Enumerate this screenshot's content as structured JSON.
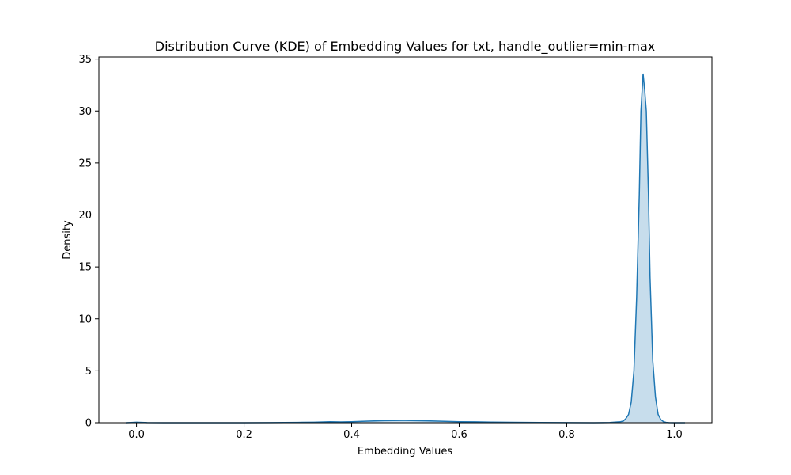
{
  "chart_data": {
    "type": "area",
    "title": "Distribution Curve (KDE) of Embedding Values for txt, handle_outlier=min-max",
    "xlabel": "Embedding Values",
    "ylabel": "Density",
    "xlim": [
      -0.07,
      1.07
    ],
    "ylim": [
      0,
      35.2
    ],
    "xticks": [
      0.0,
      0.2,
      0.4,
      0.6,
      0.8,
      1.0
    ],
    "xtick_labels": [
      "0.0",
      "0.2",
      "0.4",
      "0.6",
      "0.8",
      "1.0"
    ],
    "yticks": [
      0,
      5,
      10,
      15,
      20,
      25,
      30,
      35
    ],
    "ytick_labels": [
      "0",
      "5",
      "10",
      "15",
      "20",
      "25",
      "30",
      "35"
    ],
    "grid": false,
    "legend": "none",
    "line_color": "#1f77b4",
    "fill_color": "#1f77b4",
    "fill_opacity": 0.25,
    "series": [
      {
        "x": [
          -0.02,
          -0.01,
          0.0,
          0.01,
          0.02,
          0.05,
          0.1,
          0.15,
          0.2,
          0.25,
          0.3,
          0.33,
          0.36,
          0.38,
          0.4,
          0.43,
          0.46,
          0.5,
          0.54,
          0.58,
          0.6,
          0.63,
          0.66,
          0.7,
          0.75,
          0.8,
          0.85,
          0.88,
          0.9,
          0.905,
          0.91,
          0.915,
          0.92,
          0.925,
          0.93,
          0.935,
          0.938,
          0.942,
          0.945,
          0.948,
          0.952,
          0.955,
          0.96,
          0.965,
          0.97,
          0.975,
          0.98,
          0.985,
          0.99,
          1.0,
          1.02
        ],
        "y": [
          0.0,
          0.02,
          0.05,
          0.03,
          0.01,
          0.0,
          0.0,
          0.0,
          0.0,
          0.01,
          0.03,
          0.05,
          0.1,
          0.08,
          0.1,
          0.15,
          0.2,
          0.22,
          0.18,
          0.12,
          0.1,
          0.09,
          0.06,
          0.04,
          0.02,
          0.01,
          0.0,
          0.02,
          0.1,
          0.15,
          0.4,
          0.8,
          2.0,
          5.0,
          12.0,
          22.0,
          30.0,
          33.6,
          32.0,
          30.0,
          22.0,
          14.0,
          6.0,
          2.5,
          0.8,
          0.3,
          0.1,
          0.03,
          0.01,
          0.0,
          0.0
        ]
      }
    ]
  }
}
